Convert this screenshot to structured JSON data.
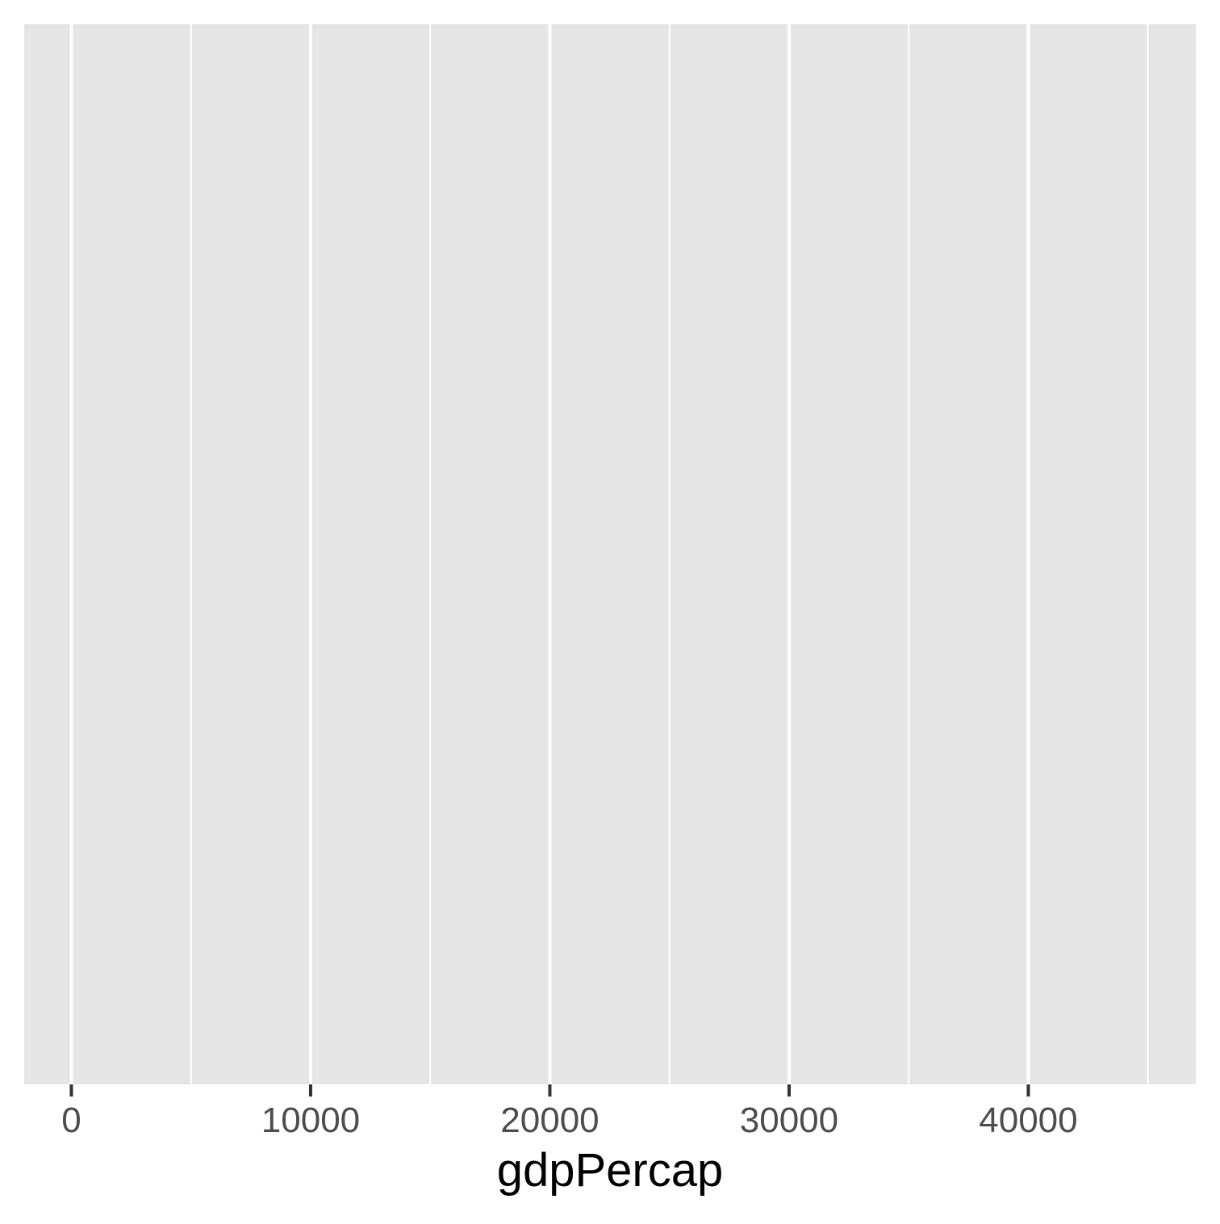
{
  "chart_data": {
    "type": "scatter",
    "title": "",
    "xlabel": "gdpPercap",
    "ylabel": "",
    "xlim": [
      -1972,
      47000
    ],
    "x_ticks_major": [
      0,
      10000,
      20000,
      30000,
      40000
    ],
    "x_ticks_minor": [
      5000,
      15000,
      25000,
      35000,
      45000
    ],
    "x_tick_labels": [
      "0",
      "10000",
      "20000",
      "30000",
      "40000"
    ],
    "y_ticks": [],
    "series": [],
    "grid": true,
    "legend": "none",
    "colors": {
      "panel_background": "#e5e5e5",
      "grid_line": "#ffffff",
      "tick_mark": "#333333",
      "tick_label": "#4d4d4d",
      "axis_title": "#000000"
    }
  }
}
